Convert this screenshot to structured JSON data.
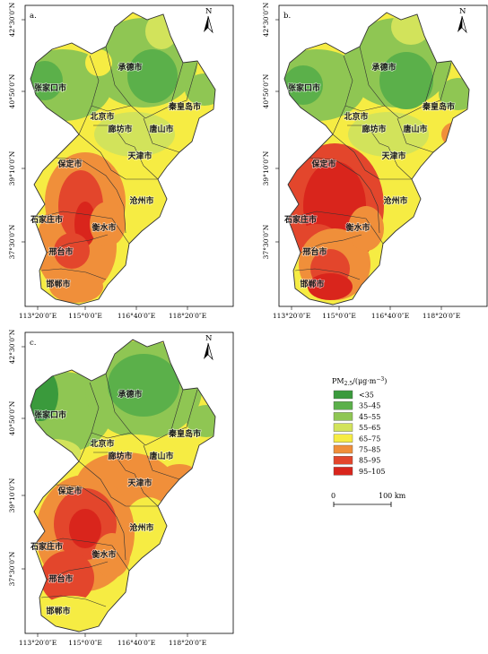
{
  "panels": [
    {
      "label": "a.",
      "x0": 0,
      "y0": 0
    },
    {
      "label": "b.",
      "x0": 283,
      "y0": 0
    },
    {
      "label": "c.",
      "x0": 0,
      "y0": 365
    }
  ],
  "north_label": "N",
  "lat_labels": [
    "42°30′0″N",
    "40°50′0″N",
    "39°10′0″N",
    "37°30′0″N"
  ],
  "lon_labels": [
    "113°20′0″E",
    "115°0′0″E",
    "116°40′0″E",
    "118°20′0″E"
  ],
  "cities": [
    {
      "id": "zhangjiakou",
      "name": "张家口市"
    },
    {
      "id": "chengde",
      "name": "承德市"
    },
    {
      "id": "qinhuangdao",
      "name": "秦皇岛市"
    },
    {
      "id": "beijing",
      "name": "北京市"
    },
    {
      "id": "langfang",
      "name": "廊坊市"
    },
    {
      "id": "tangshan",
      "name": "唐山市"
    },
    {
      "id": "tianjin",
      "name": "天津市"
    },
    {
      "id": "baoding",
      "name": "保定市"
    },
    {
      "id": "cangzhou",
      "name": "沧州市"
    },
    {
      "id": "shijiazhuang",
      "name": "石家庄市"
    },
    {
      "id": "hengshui",
      "name": "衡水市"
    },
    {
      "id": "xingtai",
      "name": "邢台市"
    },
    {
      "id": "handan",
      "name": "邯郸市"
    }
  ],
  "legend": {
    "title_main": "PM",
    "title_sub": "2.5",
    "title_unit": "/(μg·m",
    "title_sup": "−3",
    "title_close": ")",
    "classes": [
      {
        "label": "<35",
        "color": "#3a9a3c"
      },
      {
        "label": "35–45",
        "color": "#5bb04a"
      },
      {
        "label": "45–55",
        "color": "#8fc653"
      },
      {
        "label": "55–65",
        "color": "#d2e35b"
      },
      {
        "label": "65–75",
        "color": "#f6ec43"
      },
      {
        "label": "75–85",
        "color": "#f08f3a"
      },
      {
        "label": "85–95",
        "color": "#e3462c"
      },
      {
        "label": "95–105",
        "color": "#d9251c"
      }
    ],
    "scale_start": "0",
    "scale_end": "100 km"
  }
}
